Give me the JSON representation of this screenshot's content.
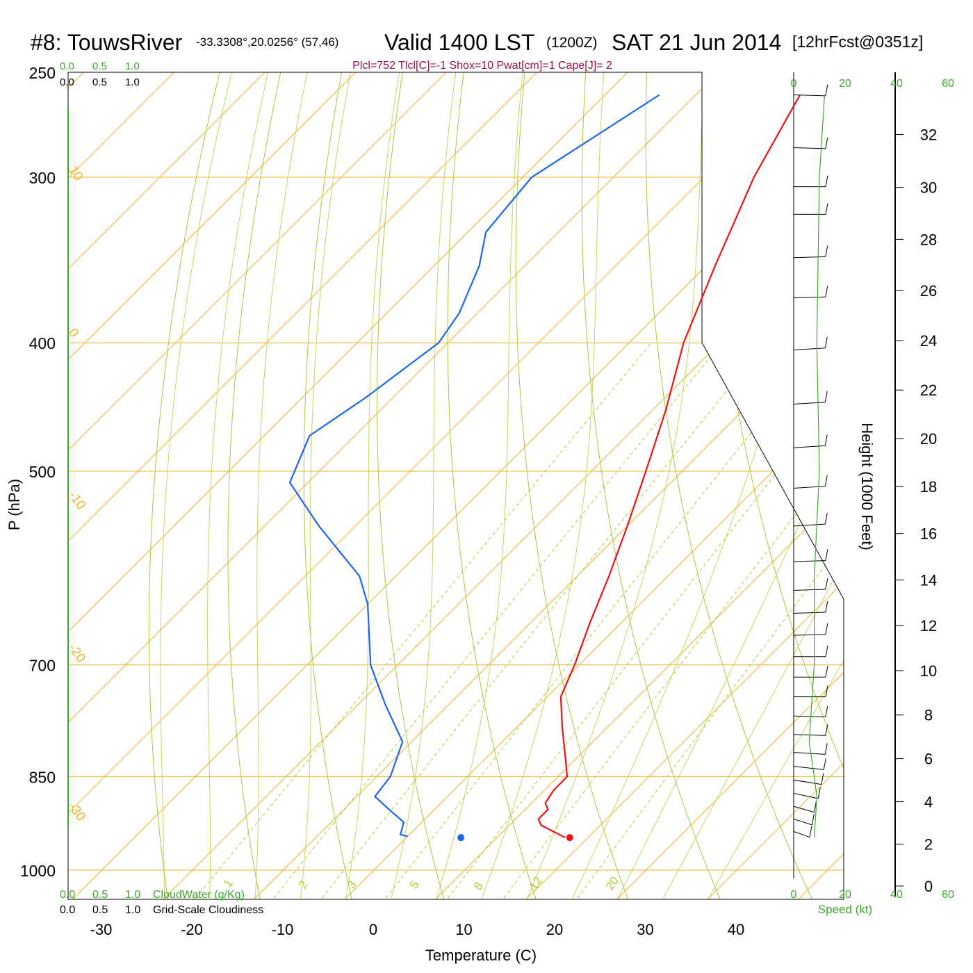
{
  "title": {
    "station": "#8: TouwsRiver",
    "coords": "-33.3308°,20.0256° (57,46)",
    "valid": "Valid 1400 LST",
    "zulu": "(1200Z)",
    "date": "SAT 21 Jun 2014",
    "forecast": "[12hrFcst@0351z]"
  },
  "params_line": "Plcl=752 Tlcl[C]=-1 Shox=10 Pwat[cm]=1 Cape[J]= 2",
  "colors": {
    "temperature": "#ee1111",
    "dewpoint": "#1a66ee",
    "isotherm": "#f0b428",
    "dry_adiabat": "#a8c83c",
    "mixing_ratio": "#a8d030",
    "speed": "#3aaa28",
    "params": "#a0104a"
  },
  "chart_data": {
    "type": "skew-t",
    "xlabel": "Temperature (C)",
    "ylabel": "P (hPa)",
    "right_label": "Height (1000 Feet)",
    "x_ticks": [
      "-30",
      "-20",
      "-10",
      "0",
      "10",
      "20",
      "30",
      "40"
    ],
    "pressure_ticks": [
      "250",
      "300",
      "400",
      "500",
      "700",
      "850",
      "1000"
    ],
    "height_ticks": [
      "0",
      "2",
      "4",
      "6",
      "8",
      "10",
      "12",
      "14",
      "16",
      "18",
      "20",
      "22",
      "24",
      "26",
      "28",
      "30",
      "32"
    ],
    "isotherm_labels": [
      "10",
      "0",
      "-10",
      "-20",
      "-30",
      "0",
      "10",
      "20",
      "30"
    ],
    "mixing_ratio_labels": [
      "1",
      "2",
      "3",
      "5",
      "8",
      "12",
      "20"
    ],
    "cloud_scale_top_green": [
      "0.0",
      "0.5",
      "1.0"
    ],
    "cloud_scale_top_black": [
      "0.0",
      "0.5",
      "1.0"
    ],
    "cloud_scale_bottom_green": [
      "0.0",
      "0.5",
      "1.0"
    ],
    "cloud_scale_bottom_black": [
      "0.0",
      "0.5",
      "1.0"
    ],
    "cloudwater_label": "CloudWater (g/Kg)",
    "cloudiness_label": "Grid-Scale Cloudiness",
    "speed_ticks_top": [
      "0",
      "20",
      "40",
      "60"
    ],
    "speed_ticks_bottom": [
      "0",
      "20",
      "40",
      "60"
    ],
    "speed_label": "Speed (kt)",
    "temperature_series": {
      "name": "Temperature",
      "points": [
        [
          260,
          -38.5
        ],
        [
          300,
          -34.5
        ],
        [
          350,
          -29
        ],
        [
          400,
          -24
        ],
        [
          450,
          -18.5
        ],
        [
          500,
          -14
        ],
        [
          550,
          -10
        ],
        [
          600,
          -6.5
        ],
        [
          650,
          -3.5
        ],
        [
          700,
          -0.5
        ],
        [
          740,
          1.5
        ],
        [
          780,
          5
        ],
        [
          820,
          8.5
        ],
        [
          850,
          11
        ],
        [
          870,
          11
        ],
        [
          890,
          11.5
        ],
        [
          900,
          12.5
        ],
        [
          915,
          12.5
        ],
        [
          925,
          13.5
        ],
        [
          935,
          15.5
        ],
        [
          945,
          17.5
        ]
      ]
    },
    "dewpoint_series": {
      "name": "Dewpoint",
      "points": [
        [
          260,
          -54
        ],
        [
          300,
          -59
        ],
        [
          330,
          -58
        ],
        [
          350,
          -55
        ],
        [
          380,
          -52
        ],
        [
          400,
          -51
        ],
        [
          440,
          -53
        ],
        [
          470,
          -55
        ],
        [
          510,
          -52
        ],
        [
          550,
          -44
        ],
        [
          600,
          -34
        ],
        [
          630,
          -30
        ],
        [
          700,
          -23
        ],
        [
          750,
          -17
        ],
        [
          800,
          -11
        ],
        [
          850,
          -8.5
        ],
        [
          880,
          -8
        ],
        [
          900,
          -5
        ],
        [
          920,
          -2
        ],
        [
          940,
          -1
        ],
        [
          943,
          0
        ]
      ]
    },
    "surface_temperature": {
      "p": 945,
      "t": 18
    },
    "surface_dewpoint": {
      "p": 945,
      "t": 6
    },
    "wind_speed_profile_kt": [
      [
        260,
        12
      ],
      [
        300,
        10
      ],
      [
        400,
        9
      ],
      [
        500,
        10
      ],
      [
        600,
        8
      ],
      [
        700,
        8
      ],
      [
        800,
        6
      ],
      [
        850,
        8
      ],
      [
        880,
        9
      ],
      [
        945,
        8
      ]
    ],
    "wind_barbs": [
      {
        "p": 260,
        "dir": 275,
        "kt": 10
      },
      {
        "p": 285,
        "dir": 275,
        "kt": 10
      },
      {
        "p": 305,
        "dir": 270,
        "kt": 10
      },
      {
        "p": 320,
        "dir": 270,
        "kt": 10
      },
      {
        "p": 345,
        "dir": 265,
        "kt": 10
      },
      {
        "p": 370,
        "dir": 265,
        "kt": 10
      },
      {
        "p": 405,
        "dir": 260,
        "kt": 10
      },
      {
        "p": 445,
        "dir": 260,
        "kt": 10
      },
      {
        "p": 480,
        "dir": 260,
        "kt": 10
      },
      {
        "p": 515,
        "dir": 260,
        "kt": 10
      },
      {
        "p": 550,
        "dir": 260,
        "kt": 10
      },
      {
        "p": 585,
        "dir": 265,
        "kt": 10
      },
      {
        "p": 615,
        "dir": 265,
        "kt": 10
      },
      {
        "p": 640,
        "dir": 265,
        "kt": 10
      },
      {
        "p": 665,
        "dir": 265,
        "kt": 10
      },
      {
        "p": 690,
        "dir": 270,
        "kt": 10
      },
      {
        "p": 715,
        "dir": 270,
        "kt": 10
      },
      {
        "p": 740,
        "dir": 270,
        "kt": 10
      },
      {
        "p": 765,
        "dir": 275,
        "kt": 10
      },
      {
        "p": 790,
        "dir": 275,
        "kt": 10
      },
      {
        "p": 815,
        "dir": 280,
        "kt": 10
      },
      {
        "p": 835,
        "dir": 290,
        "kt": 10
      },
      {
        "p": 855,
        "dir": 300,
        "kt": 10
      },
      {
        "p": 875,
        "dir": 310,
        "kt": 10
      },
      {
        "p": 895,
        "dir": 320,
        "kt": 10
      },
      {
        "p": 915,
        "dir": 325,
        "kt": 10
      },
      {
        "p": 935,
        "dir": 330,
        "kt": 10
      }
    ]
  }
}
